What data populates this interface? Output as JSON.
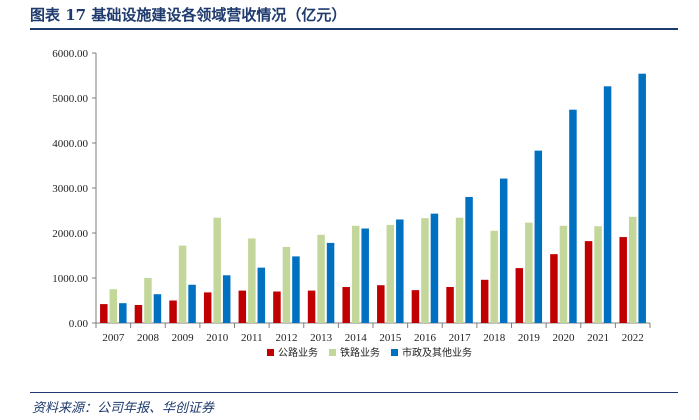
{
  "header": {
    "title": "图表 17   基础设施建设各领域营收情况（亿元）"
  },
  "source": {
    "text": "资料来源：公司年报、华创证券"
  },
  "colors": {
    "title": "#1f3b6e",
    "series": [
      "#c00000",
      "#c4d79b",
      "#0070c0"
    ]
  },
  "chart_data": {
    "type": "bar",
    "title": "",
    "xlabel": "",
    "ylabel": "",
    "ylim": [
      0,
      6000
    ],
    "ytick_step": 1000,
    "ytick_format": "0.00",
    "grid": false,
    "legend_position": "bottom",
    "categories": [
      "2007",
      "2008",
      "2009",
      "2010",
      "2011",
      "2012",
      "2013",
      "2014",
      "2015",
      "2016",
      "2017",
      "2018",
      "2019",
      "2020",
      "2021",
      "2022"
    ],
    "series": [
      {
        "name": "公路业务",
        "values": [
          420,
          400,
          500,
          680,
          720,
          700,
          720,
          800,
          840,
          730,
          800,
          960,
          1220,
          1530,
          1820,
          1910
        ]
      },
      {
        "name": "铁路业务",
        "values": [
          750,
          1000,
          1720,
          2340,
          1880,
          1690,
          1960,
          2160,
          2180,
          2330,
          2340,
          2050,
          2230,
          2160,
          2150,
          2360
        ]
      },
      {
        "name": "市政及其他业务",
        "values": [
          440,
          640,
          850,
          1060,
          1230,
          1480,
          1780,
          2100,
          2300,
          2430,
          2800,
          3210,
          3830,
          4740,
          5260,
          5540
        ]
      }
    ]
  }
}
